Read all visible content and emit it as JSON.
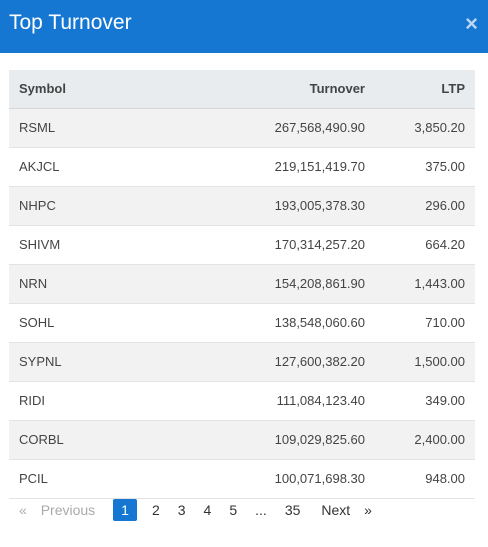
{
  "header": {
    "title": "Top Turnover",
    "close_glyph": "×"
  },
  "table": {
    "columns": [
      "Symbol",
      "Turnover",
      "LTP"
    ],
    "rows": [
      {
        "symbol": "RSML",
        "turnover": "267,568,490.90",
        "ltp": "3,850.20"
      },
      {
        "symbol": "AKJCL",
        "turnover": "219,151,419.70",
        "ltp": "375.00"
      },
      {
        "symbol": "NHPC",
        "turnover": "193,005,378.30",
        "ltp": "296.00"
      },
      {
        "symbol": "SHIVM",
        "turnover": "170,314,257.20",
        "ltp": "664.20"
      },
      {
        "symbol": "NRN",
        "turnover": "154,208,861.90",
        "ltp": "1,443.00"
      },
      {
        "symbol": "SOHL",
        "turnover": "138,548,060.60",
        "ltp": "710.00"
      },
      {
        "symbol": "SYPNL",
        "turnover": "127,600,382.20",
        "ltp": "1,500.00"
      },
      {
        "symbol": "RIDI",
        "turnover": "111,084,123.40",
        "ltp": "349.00"
      },
      {
        "symbol": "CORBL",
        "turnover": "109,029,825.60",
        "ltp": "2,400.00"
      },
      {
        "symbol": "PCIL",
        "turnover": "100,071,698.30",
        "ltp": "948.00"
      }
    ]
  },
  "pagination": {
    "prev_arrow": "«",
    "prev_label": "Previous",
    "pages": [
      "1",
      "2",
      "3",
      "4",
      "5"
    ],
    "ellipsis": "...",
    "last_page": "35",
    "next_label": "Next",
    "next_arrow": "»",
    "active_page": "1"
  },
  "colors": {
    "header_bg": "#1577d2",
    "active_page_bg": "#1577d2"
  }
}
